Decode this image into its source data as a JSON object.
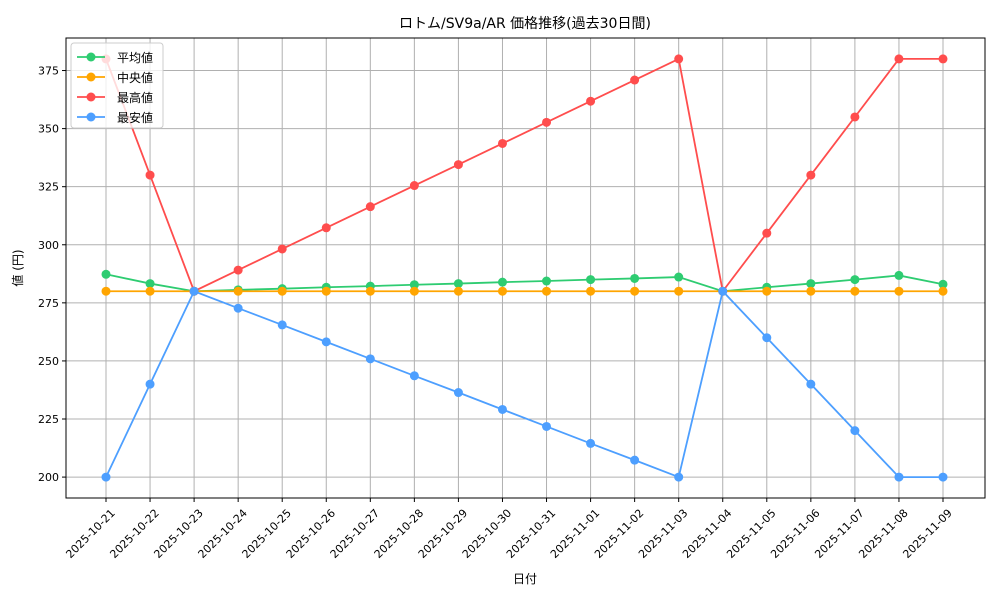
{
  "chart_data": {
    "type": "line",
    "title": "ロトム/SV9a/AR 価格推移(過去30日間)",
    "xlabel": "日付",
    "ylabel": "値 (円)",
    "ylim": [
      191,
      389
    ],
    "yticks": [
      200,
      225,
      250,
      275,
      300,
      325,
      350,
      375
    ],
    "grid": true,
    "legend_position": "top-left",
    "categories": [
      "2025-10-21",
      "2025-10-22",
      "2025-10-23",
      "2025-10-24",
      "2025-10-25",
      "2025-10-26",
      "2025-10-27",
      "2025-10-28",
      "2025-10-29",
      "2025-10-30",
      "2025-10-31",
      "2025-11-01",
      "2025-11-02",
      "2025-11-03",
      "2025-11-04",
      "2025-11-05",
      "2025-11-06",
      "2025-11-07",
      "2025-11-08",
      "2025-11-09"
    ],
    "series": [
      {
        "name": "平均値",
        "color": "#2ecc71",
        "values": [
          287.3,
          283.3,
          280,
          280.6,
          281.1,
          281.7,
          282.2,
          282.8,
          283.3,
          283.9,
          284.4,
          285,
          285.5,
          286.1,
          280,
          281.7,
          283.3,
          285,
          286.8,
          283
        ]
      },
      {
        "name": "中央値",
        "color": "#ffa500",
        "values": [
          280,
          280,
          280,
          280,
          280,
          280,
          280,
          280,
          280,
          280,
          280,
          280,
          280,
          280,
          280,
          280,
          280,
          280,
          280,
          280
        ]
      },
      {
        "name": "最高値",
        "color": "#ff4d4d",
        "values": [
          380,
          330,
          280,
          289.1,
          298.2,
          307.3,
          316.4,
          325.5,
          334.5,
          343.6,
          352.7,
          361.8,
          370.9,
          380,
          280,
          305,
          330,
          355,
          380,
          380
        ]
      },
      {
        "name": "最安値",
        "color": "#4d9fff",
        "values": [
          200,
          240,
          280,
          272.7,
          265.5,
          258.2,
          250.9,
          243.6,
          236.4,
          229.1,
          221.8,
          214.5,
          207.3,
          200,
          280,
          260,
          240,
          220,
          200,
          200
        ]
      }
    ]
  }
}
